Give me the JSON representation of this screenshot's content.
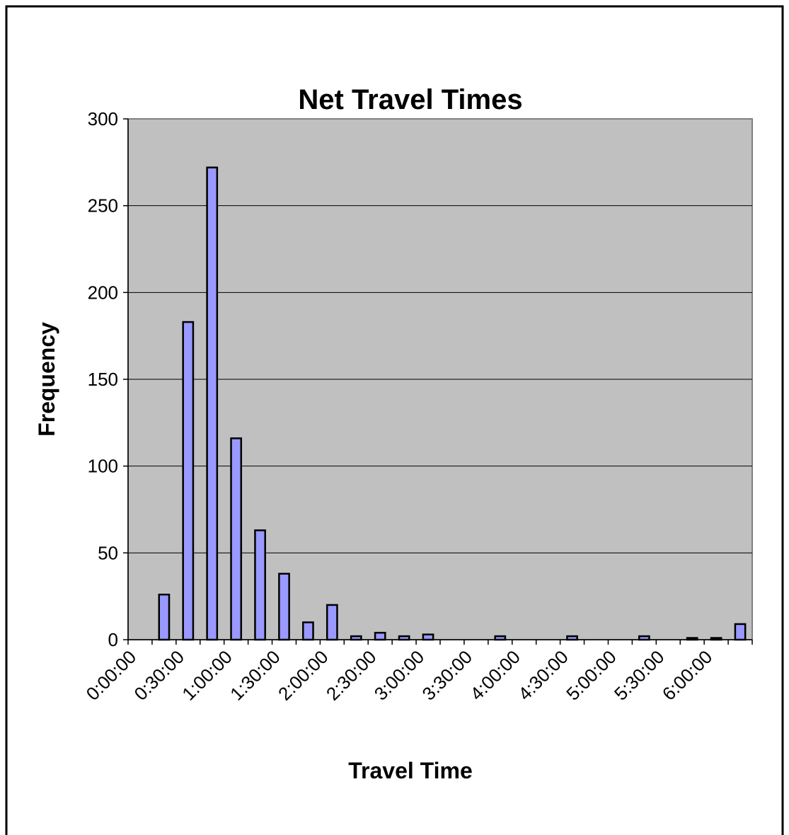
{
  "chart_data": {
    "type": "bar",
    "title": "Net Travel Times",
    "x_label": "Travel Time",
    "y_label": "Frequency",
    "categories": [
      "0:00:00",
      null,
      "0:30:00",
      null,
      "1:00:00",
      null,
      "1:30:00",
      null,
      "2:00:00",
      null,
      "2:30:00",
      null,
      "3:00:00",
      null,
      "3:30:00",
      null,
      "4:00:00",
      null,
      "4:30:00",
      null,
      "5:00:00",
      null,
      "5:30:00",
      null,
      "6:00:00",
      null
    ],
    "values": [
      0,
      26,
      183,
      272,
      116,
      63,
      38,
      10,
      20,
      2,
      4,
      2,
      3,
      0,
      0,
      2,
      0,
      0,
      2,
      0,
      0,
      2,
      0,
      1,
      1,
      9
    ],
    "color": "#9999ff",
    "ylim": [
      0,
      300
    ],
    "yticks": [
      0,
      50,
      100,
      150,
      200,
      250,
      300
    ],
    "grid": true
  }
}
